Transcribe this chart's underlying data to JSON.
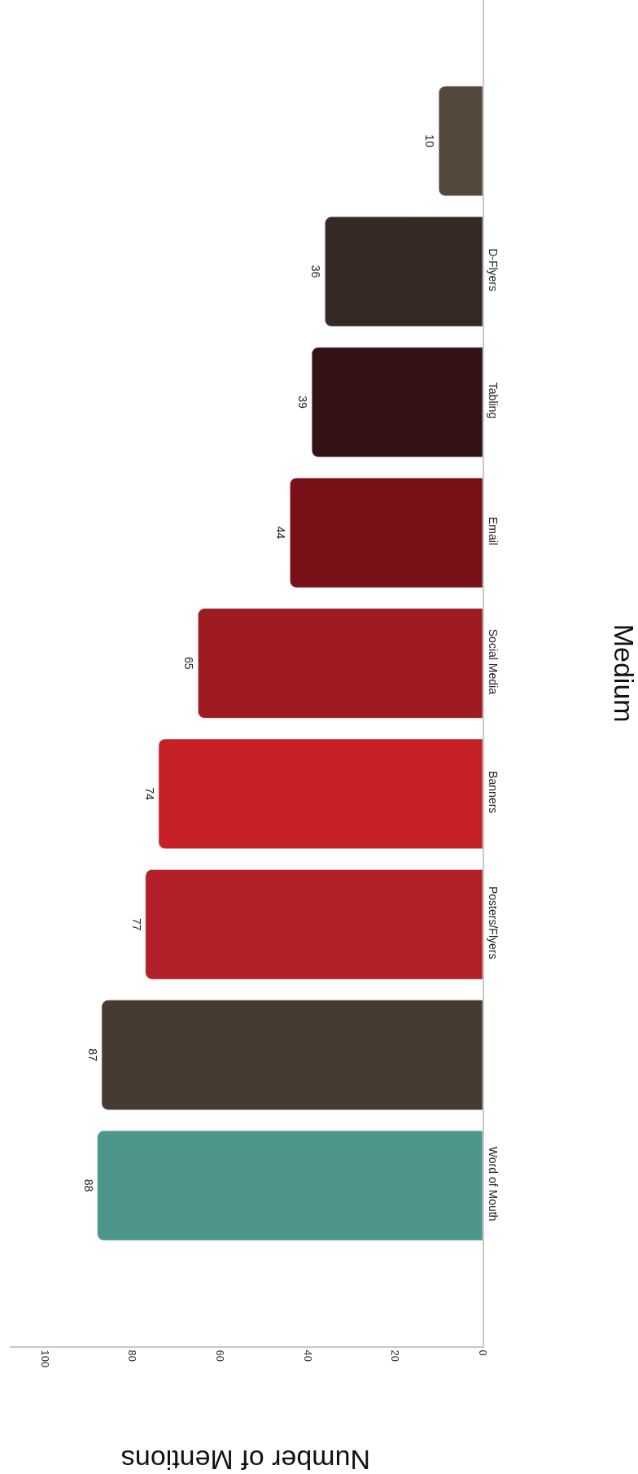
{
  "chart_data": {
    "type": "bar",
    "orientation": "horizontal",
    "categories": [
      null,
      "D-Flyers",
      "Tabling",
      "Email",
      "Social Media",
      "Banners",
      "Posters/Flyers",
      null,
      "Word of Mouth"
    ],
    "values": [
      10,
      36,
      39,
      44,
      65,
      74,
      77,
      87,
      88
    ],
    "colors": [
      "#54473c",
      "#352a25",
      "#321215",
      "#781117",
      "#9e1c21",
      "#c62127",
      "#b42027",
      "#463a31",
      "#4e958c"
    ],
    "xlim": [
      108,
      0
    ],
    "xticks": [
      0,
      20,
      40,
      60,
      80,
      100
    ],
    "xlabel": "Number of Mentions",
    "ylabel": "Medium",
    "data_labels": true
  }
}
